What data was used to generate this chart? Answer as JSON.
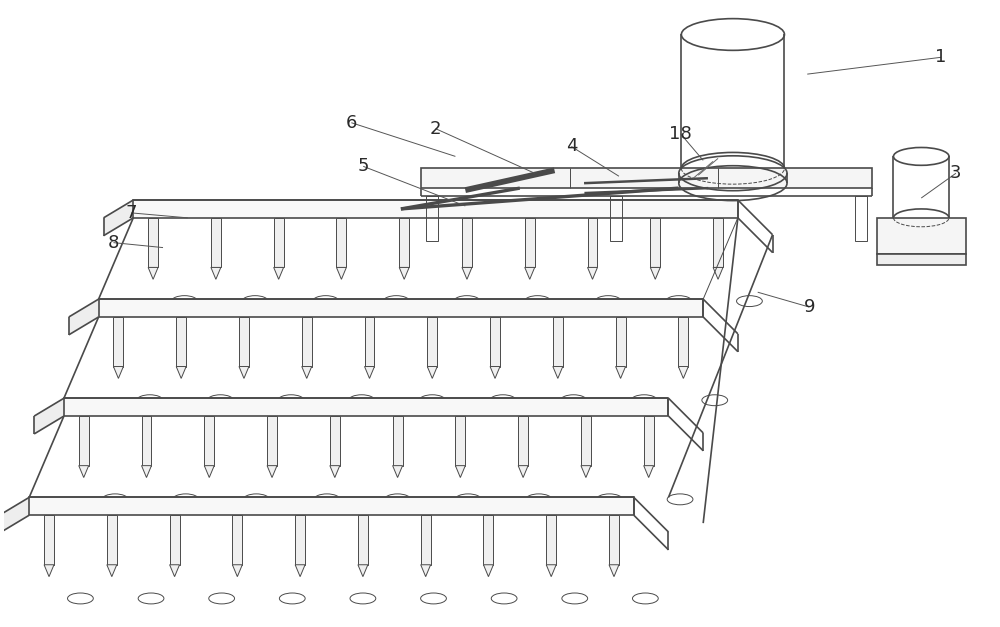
{
  "bg_color": "#ffffff",
  "line_color": "#4a4a4a",
  "lw": 1.2,
  "tlw": 0.7,
  "fig_width": 10.0,
  "fig_height": 6.27,
  "label_fontsize": 13,
  "label_color": "#2a2a2a"
}
